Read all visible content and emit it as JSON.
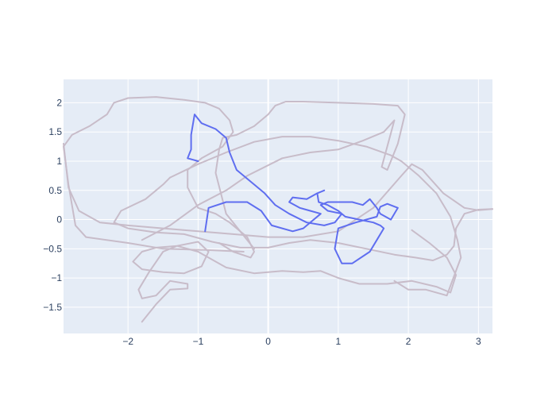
{
  "colors": {
    "plot_background": "#e5ecf6",
    "grid": "#ffffff",
    "tick_text": "#2a3f5f"
  },
  "chart_data": {
    "type": "line",
    "title": "",
    "xlabel": "",
    "ylabel": "",
    "xlim": [
      -2.92,
      3.2
    ],
    "ylim": [
      -1.95,
      2.4
    ],
    "x_ticks": [
      -2,
      -1,
      0,
      1,
      2,
      3
    ],
    "y_ticks": [
      -1.5,
      -1,
      -0.5,
      0,
      0.5,
      1,
      1.5,
      2
    ],
    "x_tick_labels": [
      "−2",
      "−1",
      "0",
      "1",
      "2",
      "3"
    ],
    "y_tick_labels": [
      "−1.5",
      "−1",
      "−0.5",
      "0",
      "0.5",
      "1",
      "1.5",
      "2"
    ],
    "grid": true,
    "legend": "none",
    "series": [
      {
        "color": "#c8bcc9",
        "x": [
          2.05,
          2.3,
          2.55,
          2.68,
          2.6,
          2.4,
          2.05,
          1.7,
          1.3,
          1.0,
          0.75,
          0.5,
          0.2,
          -0.2,
          -0.6,
          -1.0,
          -1.3,
          -1.6,
          -1.8,
          -1.93,
          -1.8,
          -1.5,
          -1.2,
          -0.95,
          -0.85,
          -1.0,
          -1.3,
          -1.5,
          -1.7,
          -1.85,
          -1.8,
          -1.6,
          -1.4,
          -1.15,
          -1.15,
          -1.4,
          -1.6,
          -1.8
        ],
        "y": [
          -0.18,
          -0.4,
          -0.65,
          -0.95,
          -1.25,
          -1.15,
          -1.05,
          -1.1,
          -1.1,
          -1.0,
          -0.88,
          -0.9,
          -0.88,
          -0.92,
          -0.82,
          -0.55,
          -0.45,
          -0.48,
          -0.55,
          -0.72,
          -0.85,
          -0.9,
          -0.92,
          -0.8,
          -0.55,
          -0.38,
          -0.45,
          -0.55,
          -0.9,
          -1.2,
          -1.35,
          -1.3,
          -1.05,
          -1.1,
          -1.18,
          -1.2,
          -1.45,
          -1.75
        ]
      },
      {
        "color": "#c8bcc9",
        "x": [
          -2.92,
          -2.85,
          -2.7,
          -2.4,
          -2.0,
          -1.5,
          -1.0,
          -0.5,
          0.0,
          0.5,
          1.0,
          1.5,
          1.9,
          2.05,
          2.2,
          2.5,
          2.8,
          3.0,
          3.2
        ],
        "y": [
          1.3,
          0.55,
          0.15,
          -0.05,
          -0.1,
          -0.15,
          -0.2,
          -0.25,
          -0.3,
          -0.3,
          -0.2,
          0.2,
          0.75,
          0.95,
          0.85,
          0.45,
          0.2,
          0.16,
          0.18
        ]
      },
      {
        "color": "#c8bcc9",
        "x": [
          3.2,
          3.0,
          2.8,
          2.68,
          2.65,
          2.55,
          2.35,
          2.1,
          1.8,
          1.4,
          1.0,
          0.6,
          0.3,
          0.0,
          -0.4,
          -0.8,
          -1.2,
          -1.6,
          -2.0,
          -2.2,
          -2.1,
          -1.75,
          -1.5,
          -1.4
        ],
        "y": [
          0.18,
          0.17,
          0.1,
          -0.15,
          -0.45,
          -0.6,
          -0.7,
          -0.65,
          -0.6,
          -0.5,
          -0.4,
          -0.35,
          -0.4,
          -0.48,
          -0.48,
          -0.38,
          -0.25,
          -0.22,
          -0.15,
          -0.05,
          0.15,
          0.35,
          0.6,
          0.72
        ]
      },
      {
        "color": "#c8bcc9",
        "x": [
          -1.4,
          -1.0,
          -0.6,
          -0.2,
          0.2,
          0.6,
          1.0,
          1.4,
          1.75,
          1.9,
          2.15,
          2.4,
          2.6,
          2.7,
          2.75,
          2.55,
          2.25,
          2.0,
          1.8
        ],
        "y": [
          0.72,
          0.95,
          1.15,
          1.33,
          1.42,
          1.42,
          1.35,
          1.25,
          1.1,
          1.0,
          0.75,
          0.45,
          0.05,
          -0.35,
          -0.65,
          -1.3,
          -1.2,
          -1.2,
          -1.05
        ]
      },
      {
        "color": "#c8bcc9",
        "x": [
          -1.8,
          -1.4,
          -1.0,
          -0.6,
          -0.3,
          0.2,
          0.6,
          1.0,
          1.35,
          1.65,
          1.8,
          1.62,
          1.7,
          1.85,
          1.95,
          1.85,
          1.5,
          1.0,
          0.5,
          0.25,
          0.1,
          0.0,
          -0.2,
          -0.45,
          -0.65,
          -0.7,
          -0.75,
          -0.6,
          -0.3,
          -0.2
        ],
        "y": [
          -0.35,
          -0.1,
          0.25,
          0.5,
          0.75,
          1.05,
          1.15,
          1.2,
          1.35,
          1.5,
          1.7,
          0.9,
          0.85,
          1.3,
          1.8,
          1.95,
          1.98,
          2.0,
          2.02,
          2.02,
          1.95,
          1.8,
          1.6,
          1.45,
          1.4,
          1.2,
          0.8,
          0.1,
          -0.35,
          -0.5
        ]
      },
      {
        "color": "#c8bcc9",
        "x": [
          -0.35,
          -0.9,
          -1.5,
          -2.0,
          -2.6,
          -2.75,
          -2.85,
          -2.92,
          -2.8,
          -2.55,
          -2.3,
          -2.2,
          -2.0,
          -1.6,
          -1.2,
          -0.9,
          -0.7,
          -0.55,
          -0.5,
          -0.65,
          -0.95,
          -1.15,
          -1.15,
          -1.0,
          -0.75,
          -0.55,
          -0.3,
          -0.2,
          -0.25,
          -0.5,
          -0.7
        ],
        "y": [
          -0.55,
          -0.52,
          -0.5,
          -0.4,
          -0.3,
          -0.1,
          0.6,
          1.25,
          1.45,
          1.6,
          1.8,
          2.0,
          2.08,
          2.1,
          2.05,
          2.0,
          1.9,
          1.7,
          1.5,
          1.25,
          1.05,
          0.85,
          0.55,
          0.2,
          0.1,
          -0.05,
          -0.3,
          -0.55,
          -0.65,
          -0.55,
          -0.4
        ]
      },
      {
        "color": "#5f6ef0",
        "x": [
          -1.0,
          -1.15,
          -1.1,
          -1.1,
          -1.05,
          -0.95,
          -0.75,
          -0.6,
          -0.55,
          -0.45,
          -0.2,
          -0.05,
          0.1,
          0.3,
          0.55,
          0.8,
          0.95,
          1.05,
          0.85,
          0.75,
          0.85,
          1.2,
          1.35,
          1.45,
          1.55,
          1.6,
          1.75,
          1.85,
          1.7,
          1.6,
          1.55,
          1.25,
          1.0,
          0.95,
          1.05,
          1.2,
          1.45,
          1.55,
          1.65,
          1.6,
          1.5,
          1.3,
          1.1,
          1.0,
          0.85,
          0.72,
          0.7,
          0.8,
          0.7,
          0.55,
          0.35,
          0.3,
          0.45,
          0.6,
          0.75,
          0.5,
          0.35,
          0.05,
          -0.1,
          -0.3,
          -0.6,
          -0.85,
          -0.9
        ],
        "y": [
          1.0,
          1.05,
          1.2,
          1.45,
          1.8,
          1.65,
          1.55,
          1.4,
          1.15,
          0.85,
          0.6,
          0.45,
          0.25,
          0.1,
          -0.05,
          -0.1,
          -0.05,
          0.1,
          0.15,
          0.25,
          0.3,
          0.3,
          0.25,
          0.35,
          0.2,
          0.1,
          0.0,
          0.2,
          0.27,
          0.22,
          0.05,
          -0.05,
          -0.15,
          -0.5,
          -0.75,
          -0.75,
          -0.55,
          -0.35,
          -0.15,
          -0.1,
          -0.05,
          0.0,
          0.05,
          0.15,
          0.25,
          0.3,
          0.45,
          0.5,
          0.45,
          0.35,
          0.38,
          0.3,
          0.2,
          0.15,
          0.1,
          -0.15,
          -0.2,
          -0.1,
          0.15,
          0.3,
          0.3,
          0.2,
          -0.2
        ]
      }
    ]
  }
}
